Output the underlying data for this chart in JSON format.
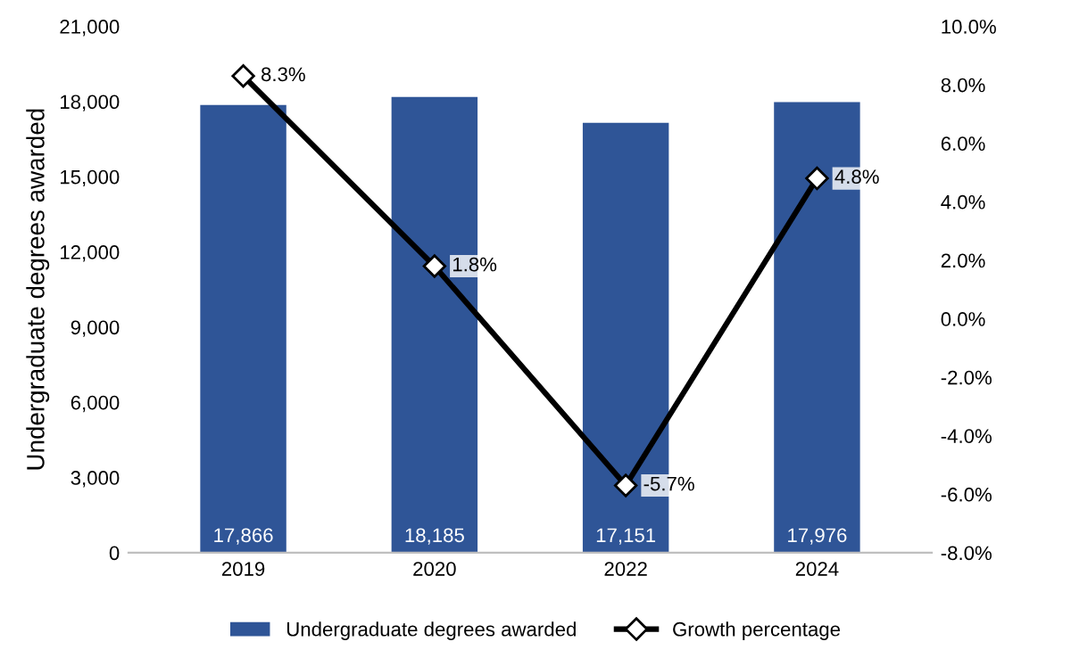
{
  "chart_data": {
    "type": "bar",
    "categories": [
      "2019",
      "2020",
      "2022",
      "2024"
    ],
    "ylabel": "Undergraduate degrees awarded",
    "series": [
      {
        "name": "Undergraduate degrees awarded",
        "color": "#2f5597",
        "values": [
          17866,
          18185,
          17151,
          17976
        ],
        "value_labels": [
          "17,866",
          "18,185",
          "17,151",
          "17,976"
        ]
      },
      {
        "name": "Growth percentage",
        "type": "line",
        "axis": "y2",
        "color": "#000000",
        "marker": "diamond",
        "values": [
          8.3,
          1.8,
          -5.7,
          4.8
        ],
        "value_labels": [
          "8.3%",
          "1.8%",
          "-5.7%",
          "4.8%"
        ]
      }
    ],
    "ylim": [
      0,
      21000
    ],
    "yticks": [
      {
        "value": 0,
        "label": "0"
      },
      {
        "value": 3000,
        "label": "3,000"
      },
      {
        "value": 6000,
        "label": "6,000"
      },
      {
        "value": 9000,
        "label": "9,000"
      },
      {
        "value": 12000,
        "label": "12,000"
      },
      {
        "value": 15000,
        "label": "15,000"
      },
      {
        "value": 18000,
        "label": "18,000"
      },
      {
        "value": 21000,
        "label": "21,000"
      }
    ],
    "y2lim": [
      -8,
      10
    ],
    "y2ticks": [
      {
        "value": -8,
        "label": "-8.0%"
      },
      {
        "value": -6,
        "label": "-6.0%"
      },
      {
        "value": -4,
        "label": "-4.0%"
      },
      {
        "value": -2,
        "label": "-2.0%"
      },
      {
        "value": 0,
        "label": "0.0%"
      },
      {
        "value": 2,
        "label": "2.0%"
      },
      {
        "value": 4,
        "label": "4.0%"
      },
      {
        "value": 6,
        "label": "6.0%"
      },
      {
        "value": 8,
        "label": "8.0%"
      },
      {
        "value": 10,
        "label": "10.0%"
      }
    ],
    "grid": false,
    "legend": "bottom"
  }
}
